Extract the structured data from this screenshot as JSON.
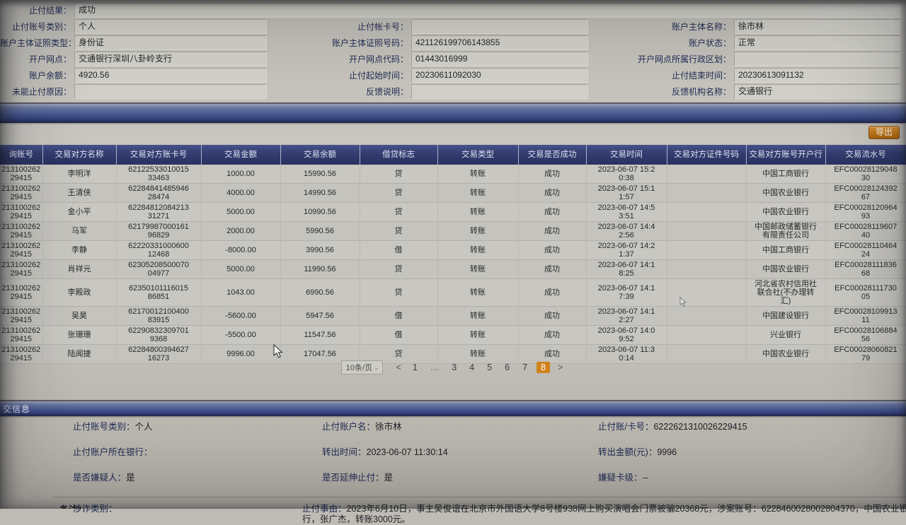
{
  "top_form": {
    "rows": [
      {
        "cells": [
          {
            "label": "止付结果：",
            "value": "成功",
            "full": true
          }
        ]
      },
      {
        "cells": [
          {
            "label": "止付账号类别：",
            "value": "个人"
          },
          {
            "label": "止付帐卡号：",
            "value": ""
          },
          {
            "label": "账户主体名称：",
            "value": "徐市林"
          }
        ]
      },
      {
        "cells": [
          {
            "label": "账户主体证照类型：",
            "value": "身份证"
          },
          {
            "label": "账户主体证照号码：",
            "value": "421126199706143855"
          },
          {
            "label": "账户状态：",
            "value": "正常"
          }
        ]
      },
      {
        "cells": [
          {
            "label": "开户网点：",
            "value": "交通银行深圳八卦岭支行"
          },
          {
            "label": "开户网点代码：",
            "value": "01443016999"
          },
          {
            "label": "开户网点所属行政区划：",
            "value": ""
          }
        ]
      },
      {
        "cells": [
          {
            "label": "账户余额：",
            "value": "4920.56"
          },
          {
            "label": "止付起始时间：",
            "value": "20230611092030"
          },
          {
            "label": "止付结束时间：",
            "value": "20230613091132"
          }
        ]
      },
      {
        "cells": [
          {
            "label": "未能止付原因：",
            "value": ""
          },
          {
            "label": "反馈说明：",
            "value": ""
          },
          {
            "label": "反馈机构名称：",
            "value": "交通银行"
          }
        ]
      }
    ]
  },
  "toolbar": {
    "export_label": "导出"
  },
  "table": {
    "columns": [
      "询账号",
      "交易对方名称",
      "交易对方账卡号",
      "交易金额",
      "交易余额",
      "借贷标志",
      "交易类型",
      "交易是否成功",
      "交易时间",
      "交易对方证件号码",
      "交易对方账号开户行",
      "交易流水号"
    ],
    "rows": [
      [
        "213100262\n29415",
        "李明洋",
        "62122533010015\n33463",
        "1000.00",
        "15990.56",
        "贷",
        "转账",
        "成功",
        "2023-06-07 15:2\n0:38",
        "",
        "中国工商银行",
        "EFC00028129048\n30"
      ],
      [
        "213100262\n29415",
        "王清侠",
        "62284841485946\n28474",
        "4000.00",
        "14990.56",
        "贷",
        "转账",
        "成功",
        "2023-06-07 15:1\n1:57",
        "",
        "中国农业银行",
        "EFC00028124392\n67"
      ],
      [
        "213100262\n29415",
        "金小平",
        "62284812084213\n31271",
        "5000.00",
        "10990.56",
        "贷",
        "转账",
        "成功",
        "2023-06-07 14:5\n3:51",
        "",
        "中国农业银行",
        "EFC00028120964\n93"
      ],
      [
        "213100262\n29415",
        "马军",
        "62179987000161\n96829",
        "2000.00",
        "5990.56",
        "贷",
        "转账",
        "成功",
        "2023-06-07 14:4\n2:56",
        "",
        "中国邮政储蓄银行\n有限责任公司",
        "EFC00028119607\n40"
      ],
      [
        "213100262\n29415",
        "李静",
        "62220331000600\n12468",
        "-8000.00",
        "3990.56",
        "借",
        "转账",
        "成功",
        "2023-06-07 14:2\n1:37",
        "",
        "中国工商银行",
        "EFC00028110464\n24"
      ],
      [
        "213100262\n29415",
        "肖祥元",
        "62305208500070\n04977",
        "5000.00",
        "11990.56",
        "贷",
        "转账",
        "成功",
        "2023-06-07 14:1\n8:25",
        "",
        "中国农业银行",
        "EFC00028111836\n68"
      ],
      [
        "213100262\n29415",
        "李殿政",
        "62350101116015\n86851",
        "1043.00",
        "6990.56",
        "贷",
        "转账",
        "成功",
        "2023-06-07 14:1\n7:39",
        "",
        "河北省农村信用社\n联合社(不办理转\n汇)",
        "EFC00028111730\n05"
      ],
      [
        "213100262\n29415",
        "吴昊",
        "62170012100400\n83915",
        "-5600.00",
        "5947.56",
        "借",
        "转账",
        "成功",
        "2023-06-07 14:1\n2:27",
        "",
        "中国建设银行",
        "EFC00028109913\n11"
      ],
      [
        "213100262\n29415",
        "张珊珊",
        "62290832309701\n9368",
        "-5500.00",
        "11547.56",
        "借",
        "转账",
        "成功",
        "2023-06-07 14:0\n9:52",
        "",
        "兴业银行",
        "EFC00028106884\n56"
      ],
      [
        "213100262\n29415",
        "陆闻捷",
        "62284800394627\n16273",
        "9996.00",
        "17047.56",
        "贷",
        "转账",
        "成功",
        "2023-06-07 11:3\n0:14",
        "",
        "中国农业银行",
        "EFC00028060821\n79"
      ]
    ]
  },
  "pagination": {
    "page_size": "10条/页",
    "chevron": "⌄",
    "items": [
      {
        "label": "<",
        "kind": "prev"
      },
      {
        "label": "1",
        "kind": "page"
      },
      {
        "label": "…",
        "kind": "ellipsis"
      },
      {
        "label": "3",
        "kind": "page"
      },
      {
        "label": "4",
        "kind": "page"
      },
      {
        "label": "5",
        "kind": "page"
      },
      {
        "label": "6",
        "kind": "page"
      },
      {
        "label": "7",
        "kind": "page"
      },
      {
        "label": "8",
        "kind": "page",
        "active": true
      },
      {
        "label": ">",
        "kind": "next"
      }
    ]
  },
  "bottom_section": {
    "title": "交信息"
  },
  "bottom_form": {
    "rows": [
      [
        {
          "label": "止付账号类别：",
          "value": "个人"
        },
        {
          "label": "止付账户名：",
          "value": "徐市林"
        },
        {
          "label": "止付账/卡号：",
          "value": "6222621310026229415"
        }
      ],
      [
        {
          "label": "止付账户所在银行：",
          "value": ""
        },
        {
          "label": "转出时间：",
          "value": "2023-06-07 11:30:14"
        },
        {
          "label": "转出金额(元)：",
          "value": "9996"
        }
      ],
      [
        {
          "label": "是否嫌疑人：",
          "value": "是"
        },
        {
          "label": "是否延伸止付：",
          "value": "是"
        },
        {
          "label": "嫌疑卡级：",
          "value": "--"
        }
      ],
      [
        {
          "label": "涉诈类别：",
          "value": ""
        },
        {
          "label": "止付事由：",
          "value": "2023年6月10日，事主吴俊谊在北京市外国语大学8号楼938网上购买演唱会门票被骗20368元，涉案账号：6228460028002804370，中国农业银行，张广杰，转账3000元。",
          "wide": true
        }
      ]
    ]
  },
  "footer": {
    "partial_text": "备注："
  }
}
